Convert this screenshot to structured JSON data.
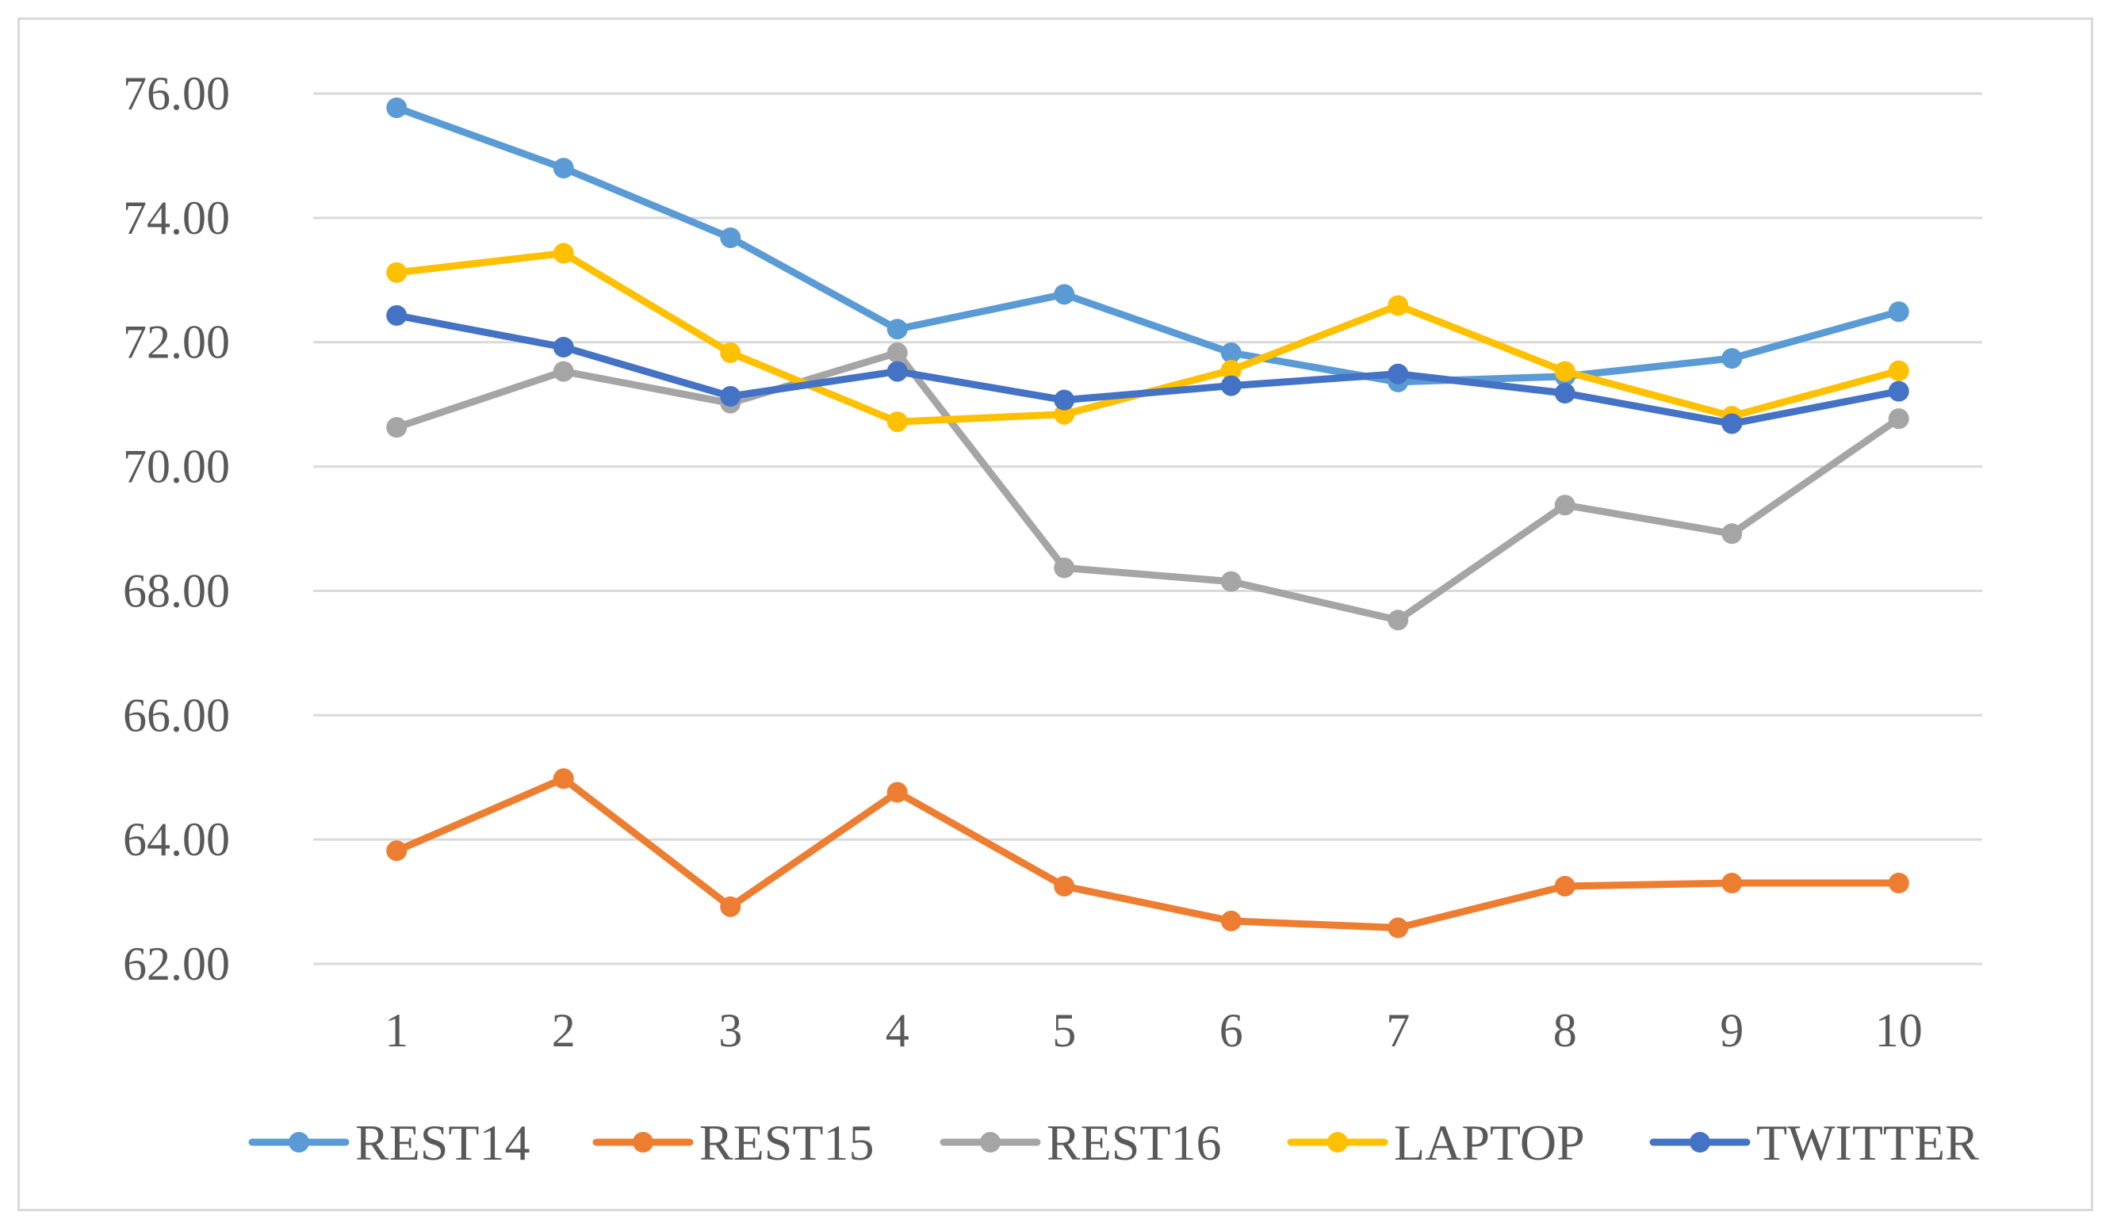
{
  "chart_data": {
    "type": "line",
    "title": "",
    "xlabel": "",
    "ylabel": "",
    "categories": [
      "1",
      "2",
      "3",
      "4",
      "5",
      "6",
      "7",
      "8",
      "9",
      "10"
    ],
    "ylim": [
      62,
      76
    ],
    "yticks": [
      "62.00",
      "64.00",
      "66.00",
      "68.00",
      "70.00",
      "72.00",
      "74.00",
      "76.00"
    ],
    "grid": true,
    "legend_position": "bottom",
    "series": [
      {
        "name": "REST14",
        "color": "#5b9bd5",
        "values": [
          75.77,
          74.8,
          73.68,
          72.21,
          72.77,
          71.83,
          71.36,
          71.45,
          71.74,
          72.49
        ]
      },
      {
        "name": "REST15",
        "color": "#ed7d31",
        "values": [
          63.82,
          64.98,
          62.92,
          64.76,
          63.25,
          62.69,
          62.58,
          63.25,
          63.3,
          63.3
        ]
      },
      {
        "name": "REST16",
        "color": "#a5a5a5",
        "values": [
          70.63,
          71.53,
          71.02,
          71.83,
          68.37,
          68.15,
          67.53,
          69.38,
          68.92,
          70.77
        ]
      },
      {
        "name": "LAPTOP",
        "color": "#ffc000",
        "values": [
          73.12,
          73.43,
          71.83,
          70.72,
          70.84,
          71.55,
          72.59,
          71.53,
          70.81,
          71.54
        ]
      },
      {
        "name": "TWITTER",
        "color": "#4472c4",
        "values": [
          72.43,
          71.92,
          71.13,
          71.53,
          71.07,
          71.3,
          71.49,
          71.18,
          70.69,
          71.21
        ]
      }
    ]
  }
}
